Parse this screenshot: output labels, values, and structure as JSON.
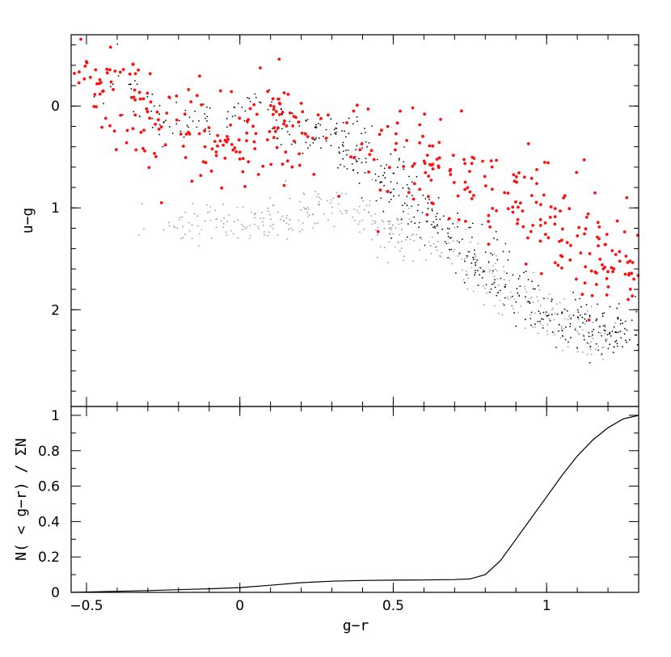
{
  "chart_data": [
    {
      "type": "scatter",
      "xlabel": "",
      "ylabel": "u−g",
      "xlim": [
        -0.55,
        1.3
      ],
      "ylim": [
        2.95,
        -0.7
      ],
      "y_inverted": true,
      "xticks": [
        -0.5,
        0,
        0.5,
        1
      ],
      "yticks": [
        0,
        1,
        2
      ],
      "ytick_labels": [
        "0",
        "1",
        "2"
      ],
      "series": [
        {
          "color": "#9a9a9a",
          "description_points": [
            [
              -0.25,
              1.18
            ],
            [
              -0.1,
              1.15
            ],
            [
              0.0,
              1.2
            ],
            [
              0.1,
              1.15
            ],
            [
              0.2,
              1.05
            ],
            [
              0.3,
              0.95
            ],
            [
              0.4,
              1.05
            ],
            [
              0.5,
              1.2
            ],
            [
              0.6,
              1.3
            ],
            [
              0.7,
              1.45
            ],
            [
              0.8,
              1.65
            ],
            [
              0.9,
              1.85
            ],
            [
              1.0,
              2.05
            ],
            [
              1.1,
              2.2
            ],
            [
              1.2,
              2.4
            ]
          ]
        },
        {
          "color": "#000000",
          "description_points": [
            [
              -0.4,
              -0.25
            ],
            [
              -0.2,
              0.2
            ],
            [
              0.0,
              0.05
            ],
            [
              0.2,
              0.15
            ],
            [
              0.3,
              0.25
            ],
            [
              0.4,
              0.55
            ],
            [
              0.5,
              0.8
            ],
            [
              0.6,
              1.05
            ],
            [
              0.7,
              1.3
            ],
            [
              0.8,
              1.6
            ],
            [
              0.9,
              1.85
            ],
            [
              1.0,
              2.05
            ],
            [
              1.1,
              2.15
            ],
            [
              1.2,
              2.22
            ],
            [
              1.3,
              2.25
            ]
          ]
        },
        {
          "color": "#ff1010",
          "description_points": [
            [
              -0.5,
              -0.4
            ],
            [
              -0.4,
              -0.2
            ],
            [
              -0.3,
              0.2
            ],
            [
              -0.2,
              0.4
            ],
            [
              0.0,
              0.3
            ],
            [
              0.1,
              0.1
            ],
            [
              0.3,
              0.2
            ],
            [
              0.5,
              0.4
            ],
            [
              0.6,
              0.55
            ],
            [
              0.7,
              0.6
            ],
            [
              0.8,
              0.8
            ],
            [
              0.9,
              0.9
            ],
            [
              1.0,
              1.1
            ],
            [
              1.1,
              1.3
            ],
            [
              1.2,
              1.5
            ],
            [
              1.25,
              1.7
            ]
          ]
        }
      ]
    },
    {
      "type": "line",
      "xlabel": "g−r",
      "ylabel": "N( < g−r) / ΣN",
      "xlim": [
        -0.55,
        1.3
      ],
      "ylim": [
        0,
        1.05
      ],
      "xticks": [
        -0.5,
        0,
        0.5,
        1
      ],
      "xtick_labels": [
        "−0.5",
        "0",
        "0.5",
        "1"
      ],
      "yticks": [
        0,
        0.2,
        0.4,
        0.6,
        0.8,
        1
      ],
      "ytick_labels": [
        "0",
        "0.2",
        "0.4",
        "0.6",
        "0.8",
        "1"
      ],
      "series": [
        {
          "color": "#000000",
          "x": [
            -0.55,
            -0.5,
            -0.4,
            -0.3,
            -0.2,
            -0.1,
            0.0,
            0.1,
            0.2,
            0.3,
            0.4,
            0.5,
            0.6,
            0.7,
            0.75,
            0.8,
            0.85,
            0.9,
            0.95,
            1.0,
            1.05,
            1.1,
            1.15,
            1.2,
            1.25,
            1.3
          ],
          "y": [
            0.0,
            0.002,
            0.006,
            0.01,
            0.015,
            0.02,
            0.027,
            0.04,
            0.055,
            0.063,
            0.067,
            0.069,
            0.07,
            0.072,
            0.076,
            0.1,
            0.18,
            0.3,
            0.42,
            0.54,
            0.66,
            0.77,
            0.86,
            0.93,
            0.98,
            1.0
          ]
        }
      ]
    }
  ]
}
